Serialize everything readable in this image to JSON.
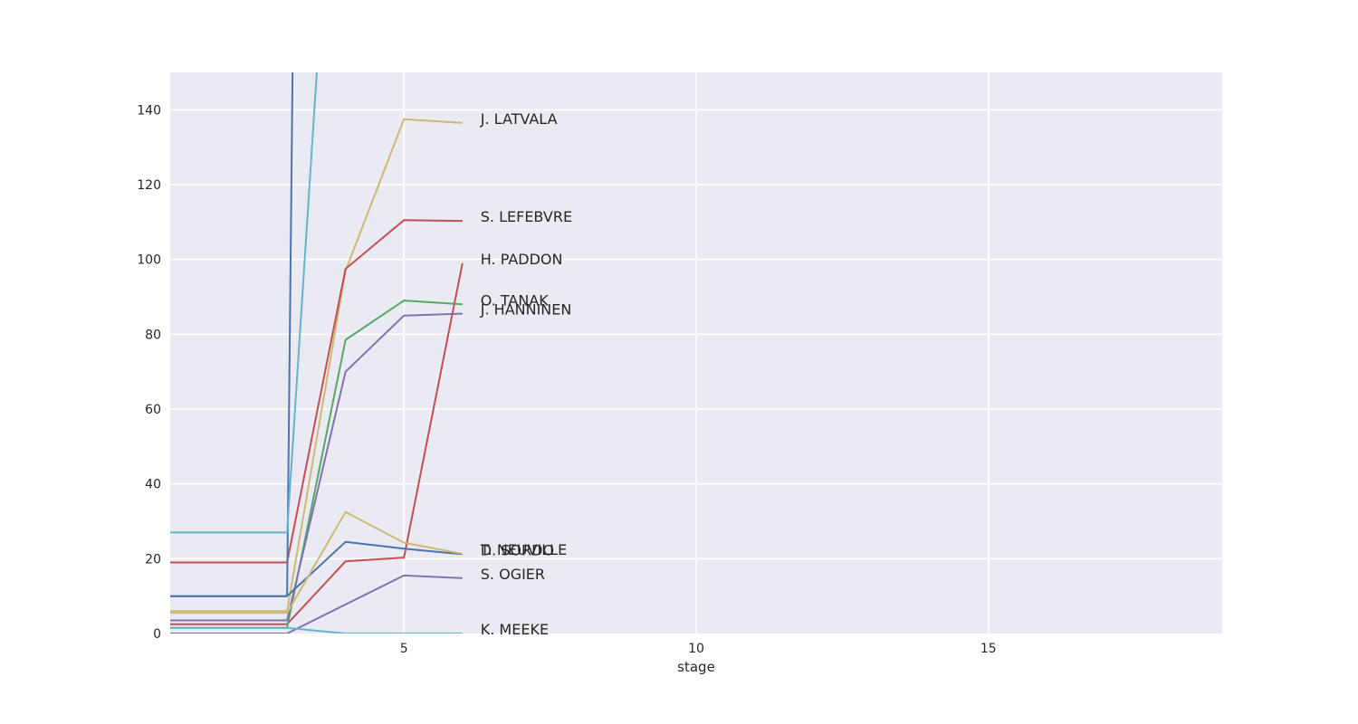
{
  "chart_data": {
    "type": "line",
    "title": "",
    "xlabel": "stage",
    "ylabel": "",
    "xlim": [
      1,
      19
    ],
    "ylim": [
      0,
      150
    ],
    "xticks": [
      5,
      10,
      15
    ],
    "yticks": [
      0,
      20,
      40,
      60,
      80,
      100,
      120,
      140
    ],
    "grid": true,
    "legend": "none",
    "series": [
      {
        "name": "J. LATVALA",
        "color": "#ccb974",
        "points": [
          [
            1,
            6
          ],
          [
            3,
            6
          ],
          [
            4,
            97
          ],
          [
            5,
            137.5
          ],
          [
            6,
            136.5
          ]
        ]
      },
      {
        "name": "S. LEFEBVRE",
        "color": "#c44e52",
        "points": [
          [
            1,
            19
          ],
          [
            3,
            19
          ],
          [
            4,
            97.5
          ],
          [
            5,
            110.5
          ],
          [
            6,
            110.3
          ]
        ]
      },
      {
        "name": "H. PADDON",
        "color": "#c44e52",
        "points": [
          [
            1,
            2.5
          ],
          [
            3,
            2.5
          ],
          [
            4,
            19.3
          ],
          [
            5,
            20.3
          ],
          [
            6,
            99
          ]
        ]
      },
      {
        "name": "O. TANAK",
        "color": "#55a868",
        "points": [
          [
            1,
            1.5
          ],
          [
            3,
            1.5
          ],
          [
            4,
            78.5
          ],
          [
            5,
            89
          ],
          [
            6,
            88
          ]
        ]
      },
      {
        "name": "J. HANNINEN",
        "color": "#8172b2",
        "points": [
          [
            1,
            3.5
          ],
          [
            3,
            3.5
          ],
          [
            4,
            70
          ],
          [
            5,
            85
          ],
          [
            6,
            85.5
          ]
        ]
      },
      {
        "name": "D. SORDO",
        "color": "#4c72b0",
        "points": [
          [
            1,
            10
          ],
          [
            3,
            10
          ],
          [
            4,
            24.5
          ],
          [
            5,
            22.7
          ],
          [
            6,
            21.2
          ]
        ]
      },
      {
        "name": "T. NEUVILLE",
        "color": "#ccb974",
        "points": [
          [
            1,
            5.5
          ],
          [
            3,
            5.5
          ],
          [
            4,
            32.5
          ],
          [
            5,
            24.3
          ],
          [
            6,
            21.3
          ]
        ]
      },
      {
        "name": "S. OGIER",
        "color": "#8172b2",
        "points": [
          [
            1,
            0
          ],
          [
            3,
            0
          ],
          [
            5,
            15.5
          ],
          [
            6,
            14.8
          ]
        ]
      },
      {
        "name": "K. MEEKE",
        "color": "#64b5cd",
        "points": [
          [
            1,
            1.5
          ],
          [
            3,
            1.5
          ],
          [
            4,
            0
          ],
          [
            6,
            0
          ]
        ]
      },
      {
        "name": "",
        "color": "#4c72b0",
        "points": [
          [
            1,
            10
          ],
          [
            3,
            10
          ],
          [
            3.1,
            160
          ]
        ]
      },
      {
        "name": "",
        "color": "#64b5cd",
        "points": [
          [
            1,
            27
          ],
          [
            3,
            27
          ],
          [
            3.55,
            160
          ]
        ]
      }
    ]
  }
}
